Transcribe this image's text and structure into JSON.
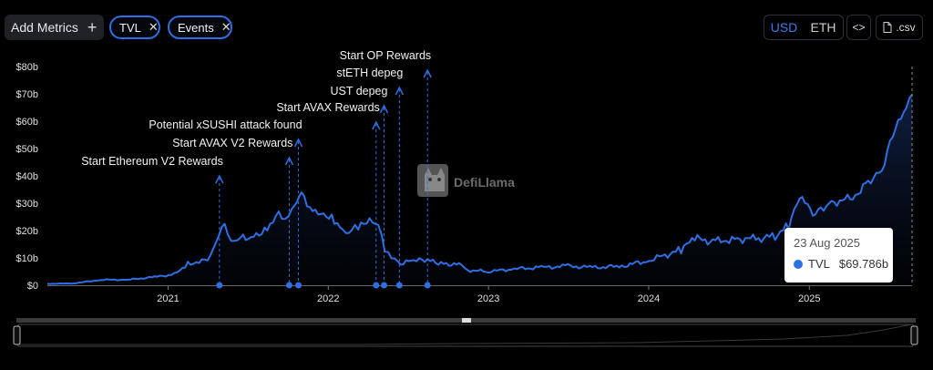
{
  "toolbar": {
    "add_metrics_label": "Add Metrics",
    "plus_glyph": "+",
    "pills": [
      {
        "label": "TVL",
        "close": "✕"
      },
      {
        "label": "Events",
        "close": "✕"
      }
    ],
    "currency_usd": "USD",
    "currency_eth": "ETH",
    "embed_glyph": "<>",
    "csv_label": ".csv",
    "csv_icon": "file-icon",
    "embed_icon": "code-icon"
  },
  "watermark": {
    "text": "DefiLlama",
    "icon": "llama-logo-icon"
  },
  "tooltip": {
    "date": "23 Aug 2025",
    "series": "TVL",
    "value": "$69.786b"
  },
  "colors": {
    "line": "#2f6fe3",
    "accent": "#3a7ae8",
    "background": "#000000"
  },
  "chart_data": {
    "type": "area",
    "series": [
      {
        "name": "TVL"
      }
    ],
    "unit": "USD billions",
    "ylim": [
      0,
      80
    ],
    "y_ticks": [
      "$0",
      "$10b",
      "$20b",
      "$30b",
      "$40b",
      "$50b",
      "$60b",
      "$70b",
      "$80b"
    ],
    "x_ticks": [
      "2021",
      "2022",
      "2023",
      "2024",
      "2025"
    ],
    "xlim": [
      "2020-04-01",
      "2025-08-23"
    ],
    "grid": false,
    "points": [
      [
        "2020-04-01",
        0.5
      ],
      [
        "2020-06-01",
        0.7
      ],
      [
        "2020-08-01",
        2
      ],
      [
        "2020-10-01",
        2
      ],
      [
        "2020-12-01",
        3
      ],
      [
        "2021-01-15",
        4
      ],
      [
        "2021-02-15",
        8
      ],
      [
        "2021-04-01",
        9
      ],
      [
        "2021-04-20",
        17
      ],
      [
        "2021-05-10",
        22
      ],
      [
        "2021-05-25",
        15
      ],
      [
        "2021-06-15",
        17
      ],
      [
        "2021-07-15",
        18
      ],
      [
        "2021-08-15",
        21
      ],
      [
        "2021-09-10",
        27
      ],
      [
        "2021-09-25",
        24
      ],
      [
        "2021-10-10",
        27
      ],
      [
        "2021-11-01",
        33
      ],
      [
        "2021-11-20",
        28
      ],
      [
        "2021-12-15",
        27
      ],
      [
        "2022-01-15",
        24
      ],
      [
        "2022-02-10",
        19
      ],
      [
        "2022-03-10",
        21
      ],
      [
        "2022-04-05",
        23
      ],
      [
        "2022-04-25",
        22
      ],
      [
        "2022-05-10",
        13
      ],
      [
        "2022-05-25",
        11
      ],
      [
        "2022-06-15",
        8
      ],
      [
        "2022-07-15",
        9
      ],
      [
        "2022-08-15",
        9
      ],
      [
        "2022-09-15",
        8
      ],
      [
        "2022-11-01",
        7.5
      ],
      [
        "2022-11-15",
        5.5
      ],
      [
        "2023-01-01",
        5
      ],
      [
        "2023-03-01",
        6
      ],
      [
        "2023-05-01",
        6.5
      ],
      [
        "2023-07-01",
        7
      ],
      [
        "2023-09-01",
        6.5
      ],
      [
        "2023-11-01",
        7
      ],
      [
        "2024-01-01",
        9
      ],
      [
        "2024-03-15",
        13
      ],
      [
        "2024-04-15",
        17
      ],
      [
        "2024-06-01",
        16
      ],
      [
        "2024-07-15",
        17
      ],
      [
        "2024-09-01",
        17
      ],
      [
        "2024-10-15",
        18
      ],
      [
        "2024-11-15",
        22
      ],
      [
        "2024-12-10",
        32
      ],
      [
        "2025-01-15",
        26
      ],
      [
        "2025-02-15",
        30
      ],
      [
        "2025-04-10",
        32
      ],
      [
        "2025-05-15",
        38
      ],
      [
        "2025-06-15",
        42
      ],
      [
        "2025-07-10",
        55
      ],
      [
        "2025-08-10",
        65
      ],
      [
        "2025-08-23",
        69.786
      ]
    ],
    "events": [
      {
        "label": "Start Ethereum V2 Rewards",
        "date": "2021-04-28"
      },
      {
        "label": "Start AVAX V2 Rewards",
        "date": "2021-10-04"
      },
      {
        "label": "Potential xSUSHI attack found",
        "date": "2021-10-25"
      },
      {
        "label": "Start AVAX Rewards",
        "date": "2022-04-20"
      },
      {
        "label": "UST depeg",
        "date": "2022-05-08"
      },
      {
        "label": "stETH depeg",
        "date": "2022-06-12"
      },
      {
        "label": "Start OP Rewards",
        "date": "2022-08-15"
      }
    ],
    "hover_date": "2025-08-23"
  }
}
